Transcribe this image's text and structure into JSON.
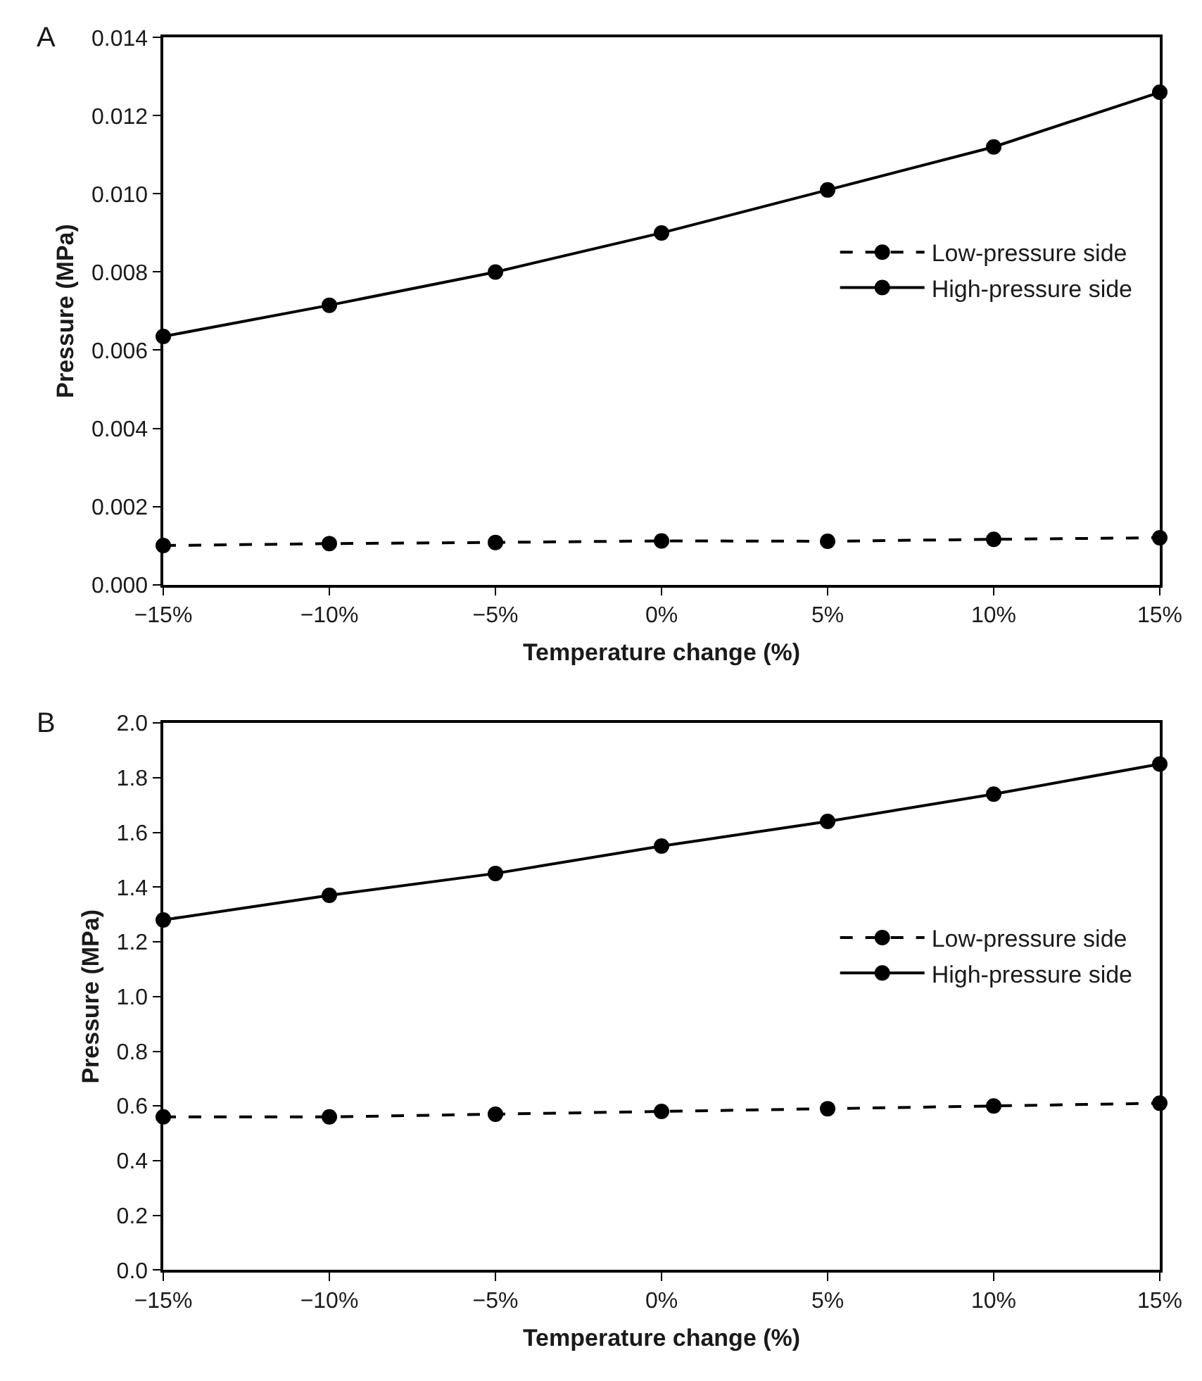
{
  "chart_data": [
    {
      "type": "line",
      "title": "A",
      "xlabel": "Temperature change (%)",
      "ylabel": "Pressure (MPa)",
      "x": [
        -15,
        -10,
        -5,
        0,
        5,
        10,
        15
      ],
      "xlim": [
        -15,
        15
      ],
      "xticks": [
        {
          "value": -15,
          "label": "−15%"
        },
        {
          "value": -10,
          "label": "−10%"
        },
        {
          "value": -5,
          "label": "−5%"
        },
        {
          "value": 0,
          "label": "0%"
        },
        {
          "value": 5,
          "label": "5%"
        },
        {
          "value": 10,
          "label": "10%"
        },
        {
          "value": 15,
          "label": "15%"
        }
      ],
      "ylim": [
        0,
        0.014
      ],
      "yticks": [
        {
          "value": 0,
          "label": "0.000"
        },
        {
          "value": 0.002,
          "label": "0.002"
        },
        {
          "value": 0.004,
          "label": "0.004"
        },
        {
          "value": 0.006,
          "label": "0.006"
        },
        {
          "value": 0.008,
          "label": "0.008"
        },
        {
          "value": 0.01,
          "label": "0.010"
        },
        {
          "value": 0.012,
          "label": "0.012"
        },
        {
          "value": 0.014,
          "label": "0.014"
        }
      ],
      "series": [
        {
          "name": "Low-pressure side",
          "color": "#000000",
          "line_style": "dashed",
          "values": [
            0.001,
            0.00105,
            0.00108,
            0.00112,
            0.00111,
            0.00116,
            0.0012
          ]
        },
        {
          "name": "High-pressure side",
          "color": "#000000",
          "line_style": "solid",
          "values": [
            0.00635,
            0.00715,
            0.008,
            0.009,
            0.0101,
            0.0112,
            0.0126
          ]
        }
      ],
      "marker": "circle",
      "legend": "right"
    },
    {
      "type": "line",
      "title": "B",
      "xlabel": "Temperature change (%)",
      "ylabel": "Pressure (MPa)",
      "x": [
        -15,
        -10,
        -5,
        0,
        5,
        10,
        15
      ],
      "xlim": [
        -15,
        15
      ],
      "xticks": [
        {
          "value": -15,
          "label": "−15%"
        },
        {
          "value": -10,
          "label": "−10%"
        },
        {
          "value": -5,
          "label": "−5%"
        },
        {
          "value": 0,
          "label": "0%"
        },
        {
          "value": 5,
          "label": "5%"
        },
        {
          "value": 10,
          "label": "10%"
        },
        {
          "value": 15,
          "label": "15%"
        }
      ],
      "ylim": [
        0,
        2.0
      ],
      "yticks": [
        {
          "value": 0,
          "label": "0.0"
        },
        {
          "value": 0.2,
          "label": "0.2"
        },
        {
          "value": 0.4,
          "label": "0.4"
        },
        {
          "value": 0.6,
          "label": "0.6"
        },
        {
          "value": 0.8,
          "label": "0.8"
        },
        {
          "value": 1.0,
          "label": "1.0"
        },
        {
          "value": 1.2,
          "label": "1.2"
        },
        {
          "value": 1.4,
          "label": "1.4"
        },
        {
          "value": 1.6,
          "label": "1.6"
        },
        {
          "value": 1.8,
          "label": "1.8"
        },
        {
          "value": 2.0,
          "label": "2.0"
        }
      ],
      "series": [
        {
          "name": "Low-pressure side",
          "color": "#000000",
          "line_style": "dashed",
          "values": [
            0.56,
            0.56,
            0.57,
            0.58,
            0.59,
            0.6,
            0.61
          ]
        },
        {
          "name": "High-pressure side",
          "color": "#000000",
          "line_style": "solid",
          "values": [
            1.28,
            1.37,
            1.45,
            1.55,
            1.64,
            1.74,
            1.85
          ]
        }
      ],
      "marker": "circle",
      "legend": "right"
    }
  ]
}
